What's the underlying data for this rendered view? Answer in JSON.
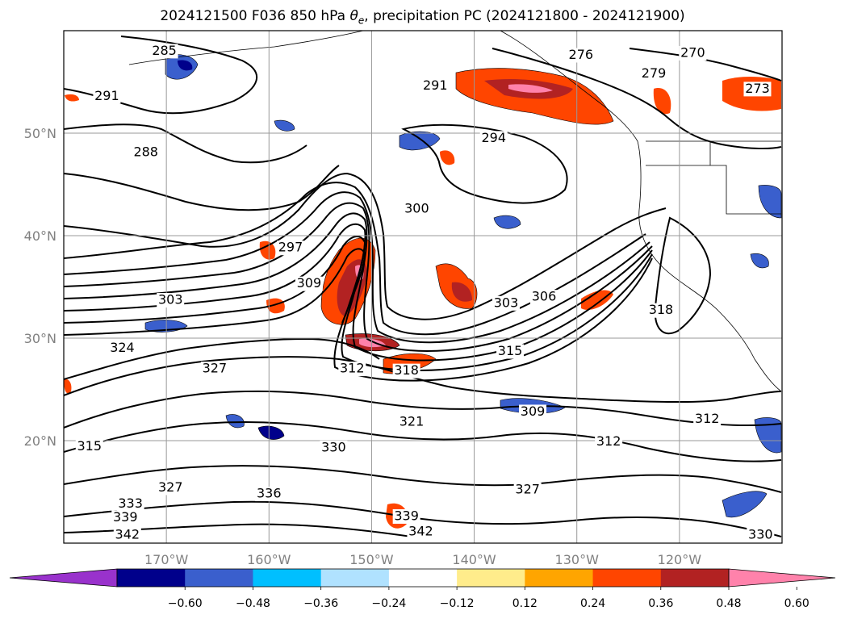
{
  "title": {
    "prefix": "2024121500 F036 850 hPa ",
    "theta": "θ",
    "theta_sub": "e",
    "suffix": ", precipitation PC (2024121800 - 2024121900)"
  },
  "map": {
    "lon_ticks": [
      {
        "label": "170°W",
        "lon": -170
      },
      {
        "label": "160°W",
        "lon": -160
      },
      {
        "label": "150°W",
        "lon": -150
      },
      {
        "label": "140°W",
        "lon": -140
      },
      {
        "label": "130°W",
        "lon": -130
      },
      {
        "label": "120°W",
        "lon": -120
      }
    ],
    "lat_ticks": [
      {
        "label": "50°N",
        "lat": 50
      },
      {
        "label": "40°N",
        "lat": 40
      },
      {
        "label": "30°N",
        "lat": 30
      },
      {
        "label": "20°N",
        "lat": 20
      }
    ],
    "lon_range": [
      -180,
      -110
    ],
    "lat_range": [
      10,
      60
    ],
    "gridlines": true,
    "contour_labels": [
      {
        "text": "285",
        "lon": -170.2,
        "lat": 58.0
      },
      {
        "text": "291",
        "lon": -175.8,
        "lat": 53.6
      },
      {
        "text": "288",
        "lon": -172.0,
        "lat": 48.1
      },
      {
        "text": "291",
        "lon": -143.8,
        "lat": 54.6
      },
      {
        "text": "294",
        "lon": -138.1,
        "lat": 49.5
      },
      {
        "text": "276",
        "lon": -129.6,
        "lat": 57.6
      },
      {
        "text": "270",
        "lon": -118.7,
        "lat": 57.8
      },
      {
        "text": "273",
        "lon": -112.4,
        "lat": 54.3
      },
      {
        "text": "279",
        "lon": -122.5,
        "lat": 55.8
      },
      {
        "text": "300",
        "lon": -145.6,
        "lat": 42.6
      },
      {
        "text": "297",
        "lon": -157.9,
        "lat": 38.8
      },
      {
        "text": "309",
        "lon": -156.1,
        "lat": 35.3
      },
      {
        "text": "303",
        "lon": -169.6,
        "lat": 33.7
      },
      {
        "text": "303",
        "lon": -136.9,
        "lat": 33.4
      },
      {
        "text": "306",
        "lon": -133.2,
        "lat": 34.0
      },
      {
        "text": "318",
        "lon": -121.8,
        "lat": 32.7
      },
      {
        "text": "315",
        "lon": -136.5,
        "lat": 28.7
      },
      {
        "text": "312",
        "lon": -151.9,
        "lat": 27.0
      },
      {
        "text": "318",
        "lon": -146.6,
        "lat": 26.8
      },
      {
        "text": "324",
        "lon": -174.3,
        "lat": 29.0
      },
      {
        "text": "327",
        "lon": -165.3,
        "lat": 27.0
      },
      {
        "text": "309",
        "lon": -134.3,
        "lat": 22.8
      },
      {
        "text": "321",
        "lon": -146.1,
        "lat": 21.8
      },
      {
        "text": "312",
        "lon": -117.3,
        "lat": 22.1
      },
      {
        "text": "312",
        "lon": -126.9,
        "lat": 19.9
      },
      {
        "text": "330",
        "lon": -153.7,
        "lat": 19.3
      },
      {
        "text": "315",
        "lon": -177.5,
        "lat": 19.4
      },
      {
        "text": "327",
        "lon": -169.6,
        "lat": 15.4
      },
      {
        "text": "336",
        "lon": -160.0,
        "lat": 14.8
      },
      {
        "text": "327",
        "lon": -134.8,
        "lat": 15.2
      },
      {
        "text": "333",
        "lon": -173.5,
        "lat": 13.8
      },
      {
        "text": "339",
        "lon": -174.0,
        "lat": 12.5
      },
      {
        "text": "339",
        "lon": -146.6,
        "lat": 12.6
      },
      {
        "text": "342",
        "lon": -173.8,
        "lat": 10.8
      },
      {
        "text": "342",
        "lon": -145.2,
        "lat": 11.1
      },
      {
        "text": "330",
        "lon": -112.1,
        "lat": 10.8
      }
    ]
  },
  "colorbar": {
    "tick_labels": [
      "−0.60",
      "−0.48",
      "−0.36",
      "−0.24",
      "−0.12",
      "0.12",
      "0.24",
      "0.36",
      "0.48",
      "0.60"
    ],
    "colors": [
      "#9932cc",
      "#00008b",
      "#3a5fcd",
      "#00bfff",
      "#b0e2ff",
      "#ffffff",
      "#ffec8b",
      "#ffa500",
      "#ff4500",
      "#b22222",
      "#ff82ab"
    ]
  }
}
